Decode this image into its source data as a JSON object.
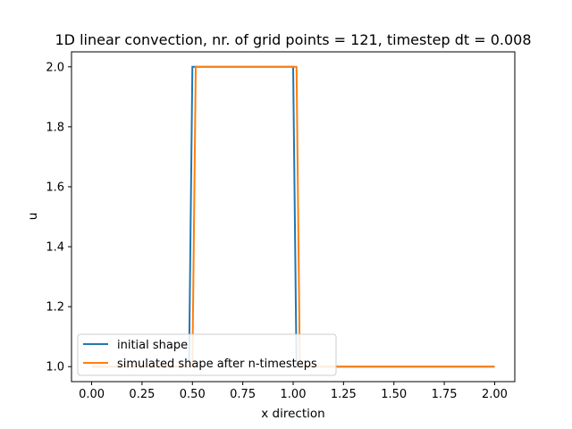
{
  "chart_data": {
    "type": "line",
    "title": "1D linear convection, nr. of grid points = 121, timestep dt = 0.008",
    "xlabel": "x direction",
    "ylabel": "u",
    "xlim": [
      -0.1,
      2.1
    ],
    "ylim": [
      0.95,
      2.05
    ],
    "xticks": [
      0.0,
      0.25,
      0.5,
      0.75,
      1.0,
      1.25,
      1.5,
      1.75,
      2.0
    ],
    "xtick_labels": [
      "0.00",
      "0.25",
      "0.50",
      "0.75",
      "1.00",
      "1.25",
      "1.50",
      "1.75",
      "2.00"
    ],
    "yticks": [
      1.0,
      1.2,
      1.4,
      1.6,
      1.8,
      2.0
    ],
    "ytick_labels": [
      "1.0",
      "1.2",
      "1.4",
      "1.6",
      "1.8",
      "2.0"
    ],
    "grid": false,
    "legend_position": "lower-left",
    "series": [
      {
        "name": "initial shape",
        "color": "#1f77b4",
        "x": [
          0.0,
          0.4833,
          0.5,
          1.0,
          1.0167,
          2.0
        ],
        "y": [
          1.0,
          1.0,
          2.0,
          2.0,
          1.0,
          1.0
        ]
      },
      {
        "name": "simulated shape after n-timesteps",
        "color": "#ff7f0e",
        "x": [
          0.0,
          0.5,
          0.5167,
          1.0,
          1.0167,
          1.0333,
          2.0
        ],
        "y": [
          1.0,
          1.0,
          2.0,
          2.0,
          2.0,
          1.0,
          1.0
        ]
      }
    ]
  }
}
